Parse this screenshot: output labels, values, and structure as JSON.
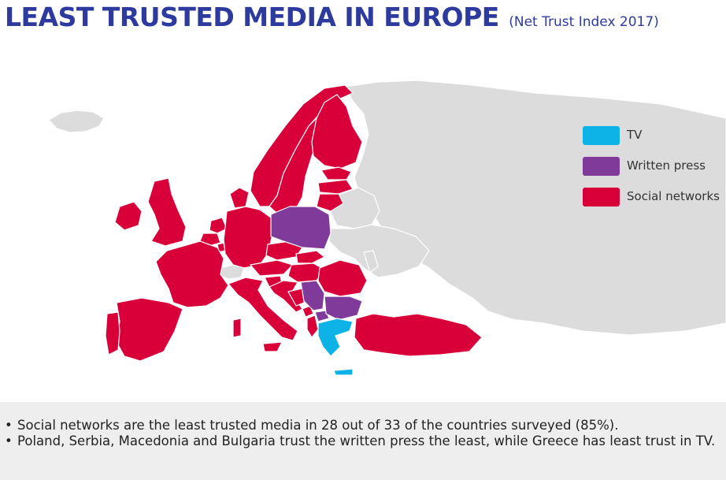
{
  "header": {
    "title": "LEAST TRUSTED MEDIA IN EUROPE",
    "subtitle": "(Net Trust Index 2017)"
  },
  "colors": {
    "tv": "#0db3e6",
    "written_press": "#7f3a9a",
    "social_networks": "#d9003a",
    "not_surveyed": "#dcdcdc",
    "title": "#2d3a9e"
  },
  "legend": {
    "items": [
      {
        "label": "TV",
        "category": "tv"
      },
      {
        "label": "Written press",
        "category": "written_press"
      },
      {
        "label": "Social networks",
        "category": "social_networks"
      }
    ]
  },
  "map": {
    "categories": {
      "tv": [
        "Greece"
      ],
      "written_press": [
        "Poland",
        "Serbia",
        "Macedonia",
        "Bulgaria"
      ],
      "social_networks": [
        "Norway",
        "Sweden",
        "Finland",
        "Estonia",
        "Latvia",
        "Lithuania",
        "Denmark",
        "Ireland",
        "United Kingdom",
        "Netherlands",
        "Belgium",
        "Luxembourg",
        "France",
        "Germany",
        "Czech Republic",
        "Slovakia",
        "Austria",
        "Hungary",
        "Slovenia",
        "Croatia",
        "Bosnia and Herzegovina",
        "Montenegro",
        "Albania",
        "Romania",
        "Italy",
        "Spain",
        "Portugal",
        "Turkey"
      ],
      "not_surveyed": [
        "Iceland",
        "Russia",
        "Belarus",
        "Ukraine",
        "Moldova",
        "Switzerland"
      ]
    }
  },
  "notes": {
    "items": [
      "Social networks are the least trusted media in 28 out of 33 of the countries surveyed (85%).",
      "Poland, Serbia, Macedonia and Bulgaria trust the written press the least, while Greece has least trust in TV."
    ]
  }
}
